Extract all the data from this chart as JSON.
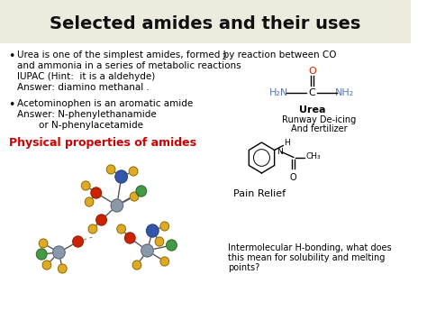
{
  "title": "Selected amides and their uses",
  "title_fontsize": 14,
  "title_bg_color": "#edeade",
  "bg_color": "#ffffff",
  "text_color": "#1a1a1a",
  "text_fontsize": 7.5,
  "small_fontsize": 7,
  "physical_label": "Physical properties of amides",
  "physical_color": "#cc0000",
  "right_urea_label": "Urea",
  "right_urea_sub1": "Runway De-icing",
  "right_urea_sub2": "And fertilizer",
  "right_pain_label": "Pain Relief",
  "right_bottom_text1": "Intermolecular H-bonding, what does",
  "right_bottom_text2": "this mean for solubility and melting",
  "right_bottom_text3": "points?",
  "blue_color": "#5577bb",
  "red_color": "#cc2200",
  "gray_color": "#8899aa",
  "gold_color": "#ddaa22",
  "green_color": "#449944",
  "dark_blue_color": "#3355aa"
}
